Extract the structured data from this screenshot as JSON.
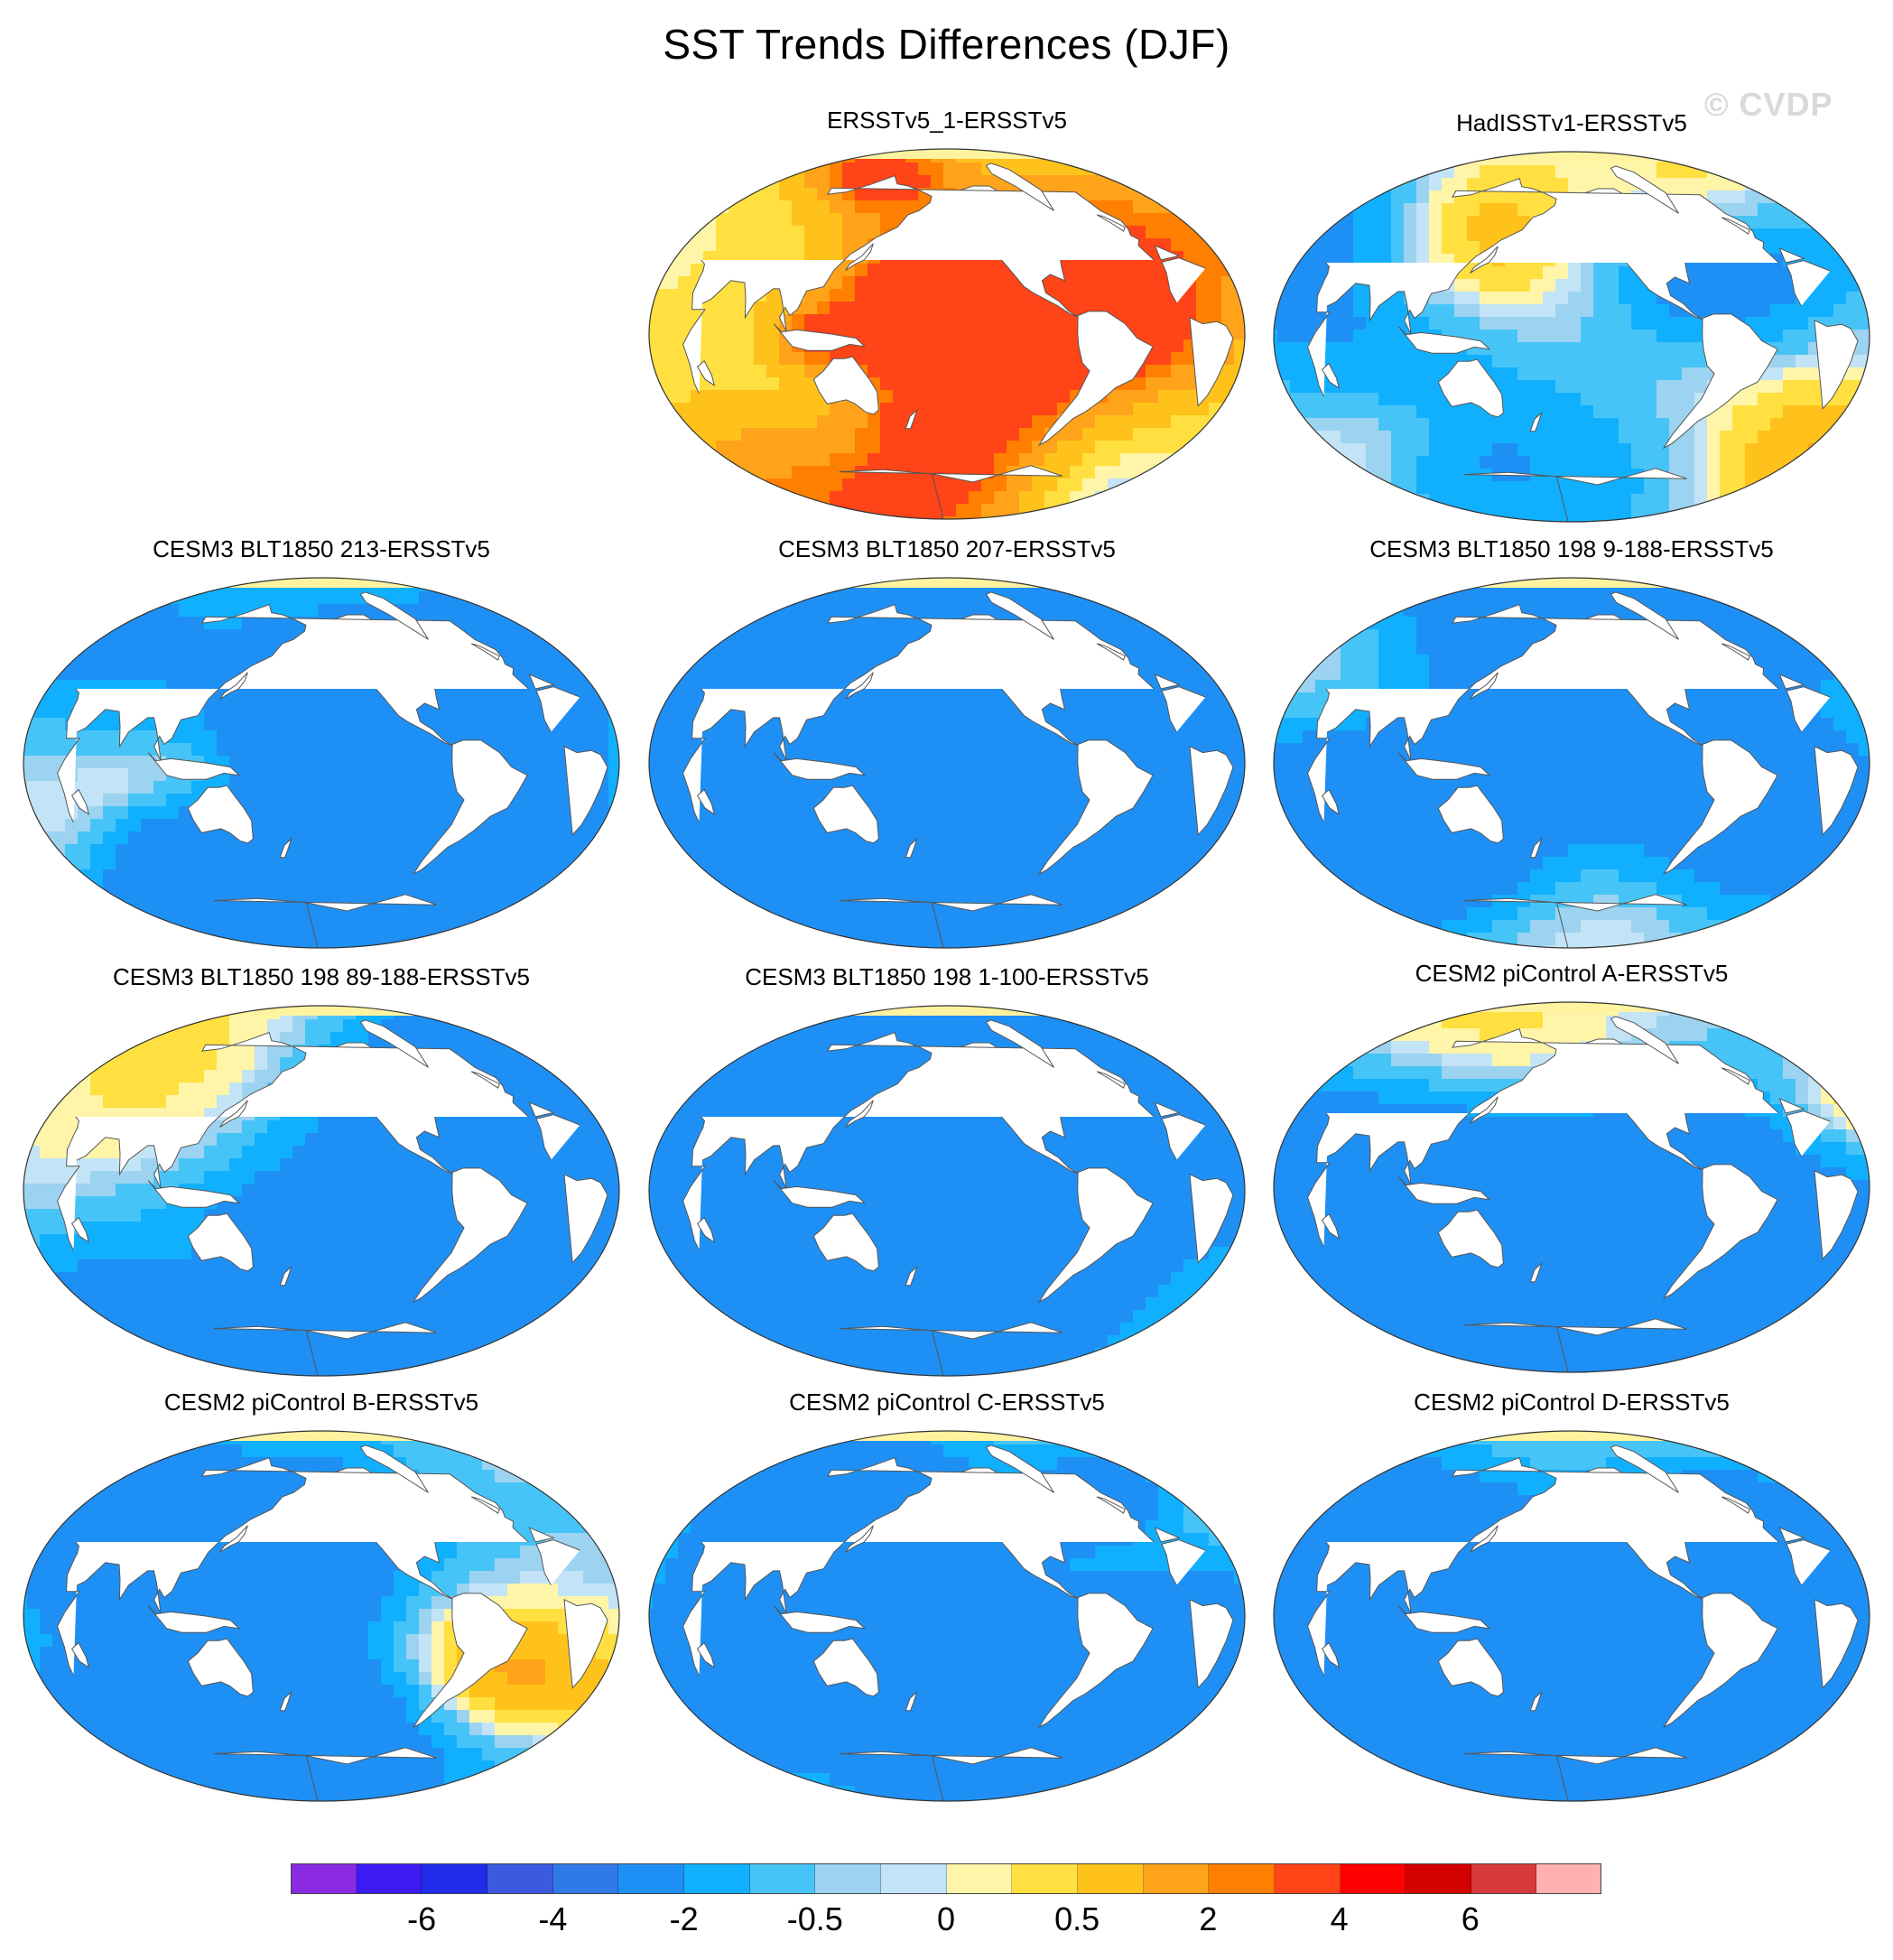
{
  "title": "SST Trends Differences (DJF)",
  "watermark": "© CVDP",
  "palette": {
    "land": "#ffffff",
    "coast": "#555555",
    "outline": "#333333",
    "polar": "#fff3a0"
  },
  "map_shapes": {
    "continents": [
      [
        [
          -168,
          66
        ],
        [
          -140,
          70
        ],
        [
          -120,
          72
        ],
        [
          -95,
          72
        ],
        [
          -80,
          66
        ],
        [
          -64,
          60
        ],
        [
          -55,
          52
        ],
        [
          -65,
          45
        ],
        [
          -75,
          40
        ],
        [
          -80,
          32
        ],
        [
          -82,
          26
        ],
        [
          -90,
          29
        ],
        [
          -97,
          26
        ],
        [
          -97,
          20
        ],
        [
          -90,
          16
        ],
        [
          -85,
          11
        ],
        [
          -79,
          8
        ],
        [
          -85,
          10
        ],
        [
          -92,
          14
        ],
        [
          -105,
          20
        ],
        [
          -110,
          23
        ],
        [
          -117,
          32
        ],
        [
          -124,
          40
        ],
        [
          -125,
          48
        ],
        [
          -135,
          57
        ],
        [
          -150,
          60
        ],
        [
          -160,
          58
        ],
        [
          -165,
          62
        ]
      ],
      [
        [
          -80,
          9
        ],
        [
          -73,
          11
        ],
        [
          -62,
          11
        ],
        [
          -52,
          5
        ],
        [
          -45,
          -2
        ],
        [
          -35,
          -6
        ],
        [
          -38,
          -14
        ],
        [
          -40,
          -22
        ],
        [
          -48,
          -26
        ],
        [
          -53,
          -33
        ],
        [
          -58,
          -38
        ],
        [
          -63,
          -41
        ],
        [
          -66,
          -47
        ],
        [
          -69,
          -52
        ],
        [
          -73,
          -54
        ],
        [
          -75,
          -48
        ],
        [
          -74,
          -40
        ],
        [
          -71,
          -30
        ],
        [
          -70,
          -18
        ],
        [
          -76,
          -14
        ],
        [
          -80,
          -6
        ],
        [
          -81,
          0
        ]
      ],
      [
        [
          -10,
          36
        ],
        [
          -9,
          43
        ],
        [
          -2,
          46
        ],
        [
          -4,
          48
        ],
        [
          2,
          51
        ],
        [
          8,
          55
        ],
        [
          5,
          60
        ],
        [
          10,
          64
        ],
        [
          18,
          69
        ],
        [
          28,
          71
        ],
        [
          40,
          68
        ],
        [
          60,
          69
        ],
        [
          80,
          73
        ],
        [
          100,
          77
        ],
        [
          120,
          73
        ],
        [
          140,
          72
        ],
        [
          160,
          70
        ],
        [
          180,
          67
        ],
        [
          180,
          64
        ],
        [
          170,
          60
        ],
        [
          160,
          58
        ],
        [
          155,
          52
        ],
        [
          141,
          47
        ],
        [
          135,
          43
        ],
        [
          128,
          39
        ],
        [
          122,
          31
        ],
        [
          120,
          23
        ],
        [
          110,
          21
        ],
        [
          108,
          12
        ],
        [
          104,
          9
        ],
        [
          100,
          13
        ],
        [
          98,
          8
        ],
        [
          103,
          1
        ],
        [
          97,
          16
        ],
        [
          92,
          22
        ],
        [
          88,
          22
        ],
        [
          80,
          15
        ],
        [
          77,
          8
        ],
        [
          73,
          18
        ],
        [
          67,
          25
        ],
        [
          57,
          26
        ],
        [
          52,
          17
        ],
        [
          44,
          13
        ],
        [
          38,
          20
        ],
        [
          35,
          28
        ],
        [
          28,
          34
        ],
        [
          22,
          36
        ],
        [
          12,
          38
        ],
        [
          4,
          43
        ],
        [
          -5,
          36
        ]
      ],
      [
        [
          -17,
          15
        ],
        [
          -17,
          21
        ],
        [
          -10,
          30
        ],
        [
          -6,
          35
        ],
        [
          10,
          37
        ],
        [
          20,
          32
        ],
        [
          32,
          31
        ],
        [
          34,
          28
        ],
        [
          38,
          20
        ],
        [
          43,
          12
        ],
        [
          51,
          12
        ],
        [
          45,
          2
        ],
        [
          40,
          -5
        ],
        [
          40,
          -15
        ],
        [
          35,
          -24
        ],
        [
          32,
          -29
        ],
        [
          20,
          -35
        ],
        [
          18,
          -30
        ],
        [
          14,
          -22
        ],
        [
          12,
          -12
        ],
        [
          13,
          -2
        ],
        [
          9,
          4
        ],
        [
          4,
          6
        ],
        [
          -5,
          5
        ],
        [
          -12,
          8
        ]
      ],
      [
        [
          114,
          -22
        ],
        [
          122,
          -18
        ],
        [
          130,
          -12
        ],
        [
          137,
          -12
        ],
        [
          142,
          -11
        ],
        [
          145,
          -15
        ],
        [
          150,
          -22
        ],
        [
          153,
          -28
        ],
        [
          150,
          -37
        ],
        [
          145,
          -39
        ],
        [
          140,
          -38
        ],
        [
          135,
          -34
        ],
        [
          130,
          -32
        ],
        [
          115,
          -34
        ],
        [
          114,
          -28
        ]
      ],
      [
        [
          -45,
          60
        ],
        [
          -25,
          70
        ],
        [
          -20,
          80
        ],
        [
          -40,
          83
        ],
        [
          -60,
          82
        ],
        [
          -70,
          78
        ],
        [
          -55,
          72
        ]
      ],
      [
        [
          95,
          5
        ],
        [
          106,
          -6
        ],
        [
          115,
          -8
        ],
        [
          130,
          -8
        ],
        [
          141,
          -5
        ],
        [
          150,
          -6
        ],
        [
          145,
          -2
        ],
        [
          130,
          0
        ],
        [
          120,
          1
        ],
        [
          109,
          2
        ],
        [
          100,
          1
        ]
      ],
      [
        [
          44,
          -16
        ],
        [
          50,
          -13
        ],
        [
          50,
          -20
        ],
        [
          47,
          -25
        ],
        [
          44,
          -22
        ]
      ],
      [
        [
          130,
          31
        ],
        [
          135,
          34
        ],
        [
          140,
          36
        ],
        [
          142,
          40
        ],
        [
          141,
          44
        ],
        [
          137,
          38
        ],
        [
          131,
          34
        ]
      ],
      [
        [
          -5,
          50
        ],
        [
          2,
          52
        ],
        [
          -2,
          57
        ],
        [
          -6,
          58
        ],
        [
          -5,
          54
        ]
      ],
      [
        [
          166,
          -46
        ],
        [
          172,
          -40
        ],
        [
          178,
          -37
        ],
        [
          174,
          -42
        ],
        [
          170,
          -46
        ]
      ],
      [
        [
          -180,
          -90
        ],
        [
          -180,
          -68
        ],
        [
          -120,
          -72
        ],
        [
          -60,
          -64
        ],
        [
          0,
          -69
        ],
        [
          60,
          -67
        ],
        [
          120,
          -66
        ],
        [
          180,
          -68
        ],
        [
          180,
          -90
        ]
      ]
    ]
  },
  "panels": [
    {
      "title": "ERSSTv5_1-ERSSTv5",
      "seed": 11,
      "warm": 0.62
    },
    {
      "title": "HadISSTv1-ERSSTv5",
      "seed": 23,
      "warm": 0.48
    },
    {
      "title": "CESM3 BLT1850 213-ERSSTv5",
      "seed": 37,
      "warm": 0.28
    },
    {
      "title": "CESM3 BLT1850 207-ERSSTv5",
      "seed": 41,
      "warm": 0.18
    },
    {
      "title": "CESM3 BLT1850 198 9-188-ERSSTv5",
      "seed": 53,
      "warm": 0.26
    },
    {
      "title": "CESM3 BLT1850 198 89-188-ERSSTv5",
      "seed": 67,
      "warm": 0.36
    },
    {
      "title": "CESM3 BLT1850 198 1-100-ERSSTv5",
      "seed": 71,
      "warm": 0.2
    },
    {
      "title": "CESM2 piControl A-ERSSTv5",
      "seed": 83,
      "warm": 0.3
    },
    {
      "title": "CESM2 piControl B-ERSSTv5",
      "seed": 97,
      "warm": 0.34
    },
    {
      "title": "CESM2 piControl C-ERSSTv5",
      "seed": 103,
      "warm": 0.33
    },
    {
      "title": "CESM2 piControl D-ERSSTv5",
      "seed": 113,
      "warm": 0.33
    }
  ],
  "colorbar": {
    "colors": [
      "#8a2be2",
      "#3d1af2",
      "#1f2ce8",
      "#3c5ae0",
      "#2f7ae8",
      "#1e90f5",
      "#11b0ff",
      "#47c4f7",
      "#9cd3f0",
      "#c2e4f6",
      "#fff5a8",
      "#ffe040",
      "#ffc21a",
      "#ffa31a",
      "#ff7f00",
      "#ff4418",
      "#ff0000",
      "#d40000",
      "#d73a3a",
      "#ffb0b0"
    ],
    "labels": [
      "-6",
      "-4",
      "-2",
      "-0.5",
      "0",
      "0.5",
      "2",
      "4",
      "6"
    ]
  }
}
